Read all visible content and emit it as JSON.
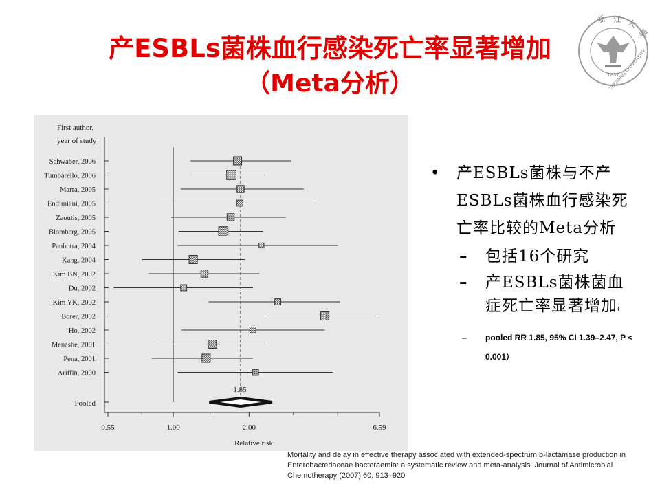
{
  "title": {
    "line1": "产ESBLs菌株血行感染死亡率显著增加",
    "line2": "（Meta分析）"
  },
  "logo": {
    "icon": "zhejiang-university-emblem",
    "text": "ZHEJIANG UNIVERSITY",
    "year": "1897"
  },
  "forest_plot": {
    "header_line1": "First author,",
    "header_line2": "year of study",
    "studies": [
      {
        "label": "Schwaber, 2006",
        "rr": 1.8,
        "lo": 1.17,
        "hi": 2.95,
        "weight": 5
      },
      {
        "label": "Tumbarello, 2006",
        "rr": 1.7,
        "lo": 1.17,
        "hi": 2.3,
        "weight": 6
      },
      {
        "label": "Marra, 2005",
        "rr": 1.85,
        "lo": 1.07,
        "hi": 3.3,
        "weight": 4
      },
      {
        "label": "Endimiani, 2005",
        "rr": 1.84,
        "lo": 0.88,
        "hi": 3.7,
        "weight": 3
      },
      {
        "label": "Zaoutis, 2005",
        "rr": 1.69,
        "lo": 0.98,
        "hi": 2.8,
        "weight": 4
      },
      {
        "label": "Blomberg, 2005",
        "rr": 1.58,
        "lo": 1.05,
        "hi": 2.27,
        "weight": 6
      },
      {
        "label": "Panhotra, 2004",
        "rr": 2.24,
        "lo": 1.04,
        "hi": 4.5,
        "weight": 2
      },
      {
        "label": "Kang, 2004",
        "rr": 1.2,
        "lo": 0.75,
        "hi": 1.93,
        "weight": 5
      },
      {
        "label": "Kim BN, 2002",
        "rr": 1.33,
        "lo": 0.8,
        "hi": 2.2,
        "weight": 4
      },
      {
        "label": "Du, 2002",
        "rr": 1.1,
        "lo": 0.58,
        "hi": 2.07,
        "weight": 3
      },
      {
        "label": "Kim YK, 2002",
        "rr": 2.6,
        "lo": 1.38,
        "hi": 4.6,
        "weight": 3
      },
      {
        "label": "Borer, 2002",
        "rr": 4.0,
        "lo": 2.35,
        "hi": 6.4,
        "weight": 5
      },
      {
        "label": "Ho, 2002",
        "rr": 2.07,
        "lo": 1.08,
        "hi": 4.0,
        "weight": 3
      },
      {
        "label": "Menashe, 2001",
        "rr": 1.43,
        "lo": 0.87,
        "hi": 2.3,
        "weight": 5
      },
      {
        "label": "Pena, 2001",
        "rr": 1.35,
        "lo": 0.82,
        "hi": 2.07,
        "weight": 5
      },
      {
        "label": "Ariffin, 2000",
        "rr": 2.12,
        "lo": 1.04,
        "hi": 4.3,
        "weight": 3
      }
    ],
    "pooled_label": "Pooled",
    "pooled": {
      "rr": 1.85,
      "lo": 1.39,
      "hi": 2.47
    },
    "pooled_value_label": "1.85",
    "xticks": [
      {
        "v": 0.55,
        "label": "0.55"
      },
      {
        "v": 1.0,
        "label": "1.00"
      },
      {
        "v": 2.0,
        "label": "2.00"
      },
      {
        "v": 6.59,
        "label": "6.59"
      }
    ],
    "xlabel": "Relative risk",
    "xrange": [
      0.55,
      6.59
    ]
  },
  "bullets": {
    "main": "产ESBLs菌株与不产ESBLs菌株血行感染死亡率比较的Meta分析",
    "sub1": "包括16个研究",
    "sub2": "产ESBLs菌株菌血症死亡率显著增加",
    "sub2_tail": "(",
    "sub3": "pooled RR 1.85, 95% CI 1.39–2.47, P < 0.001）"
  },
  "caption": {
    "text": "Mortality and delay in effective therapy associated with extended-spectrum b-lactamase production in Enterobacteriaceae bacteraemia: a systematic review and meta-analysis. Journal of Antimicrobial Chemotherapy (2007) 60, 913–920"
  },
  "colors": {
    "title": "#e00000",
    "panel": "#e8e8e8"
  }
}
